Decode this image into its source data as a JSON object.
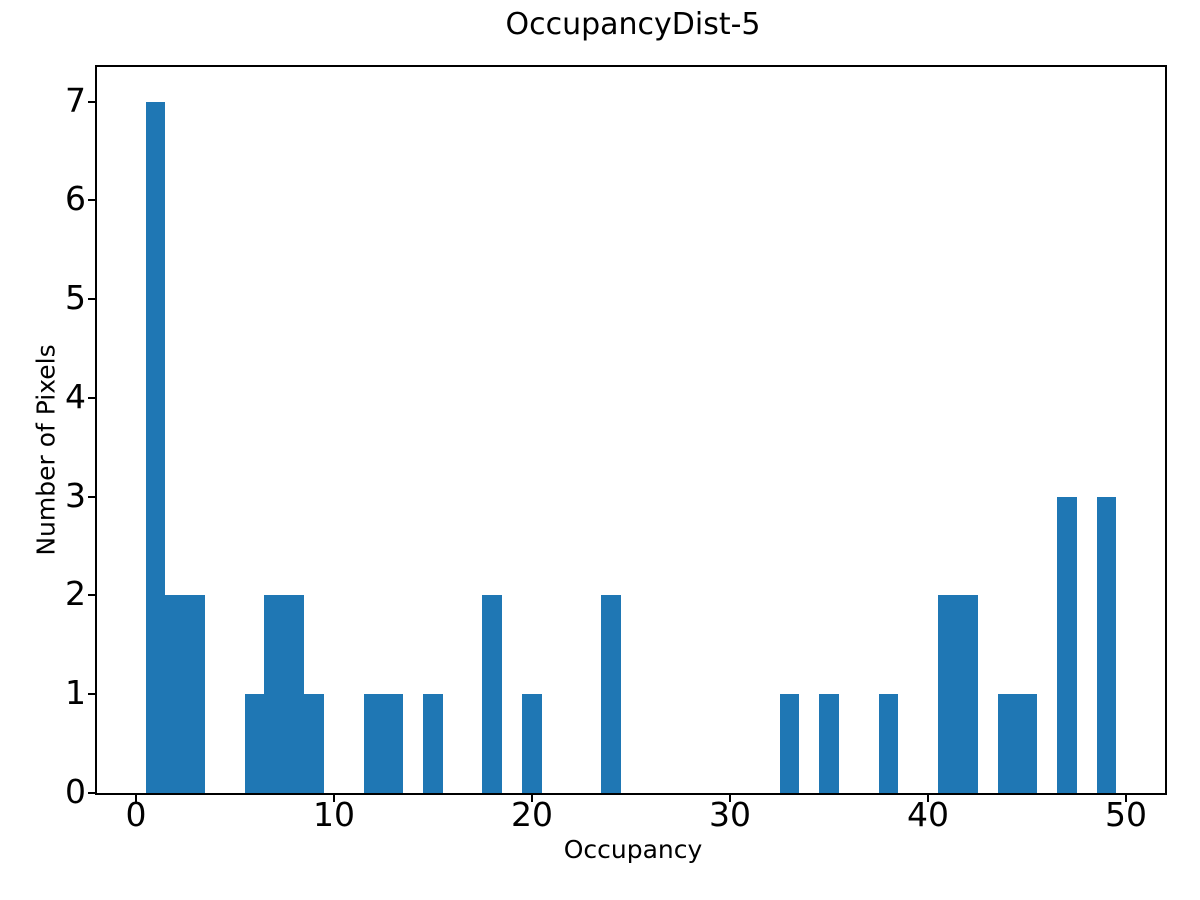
{
  "figure": {
    "background_color": "#ffffff",
    "axis_color": "#000000",
    "text_color": "#000000"
  },
  "chart_data": {
    "type": "bar",
    "title": "OccupancyDist-5",
    "xlabel": "Occupancy",
    "ylabel": "Number of Pixels",
    "bar_color": "#1f77b4",
    "bar_width": 1,
    "x": [
      1,
      2,
      3,
      6,
      7,
      8,
      9,
      12,
      13,
      15,
      18,
      20,
      24,
      33,
      35,
      38,
      41,
      42,
      44,
      45,
      47,
      49
    ],
    "counts": [
      7,
      2,
      2,
      1,
      2,
      2,
      1,
      1,
      1,
      1,
      2,
      1,
      2,
      1,
      1,
      1,
      2,
      2,
      1,
      1,
      3,
      3
    ],
    "xticks": [
      0,
      10,
      20,
      30,
      40,
      50
    ],
    "yticks": [
      0,
      1,
      2,
      3,
      4,
      5,
      6,
      7
    ],
    "xlim": [
      -1.95,
      51.95
    ],
    "ylim": [
      0,
      7.35
    ],
    "grid": false,
    "legend": "none"
  }
}
